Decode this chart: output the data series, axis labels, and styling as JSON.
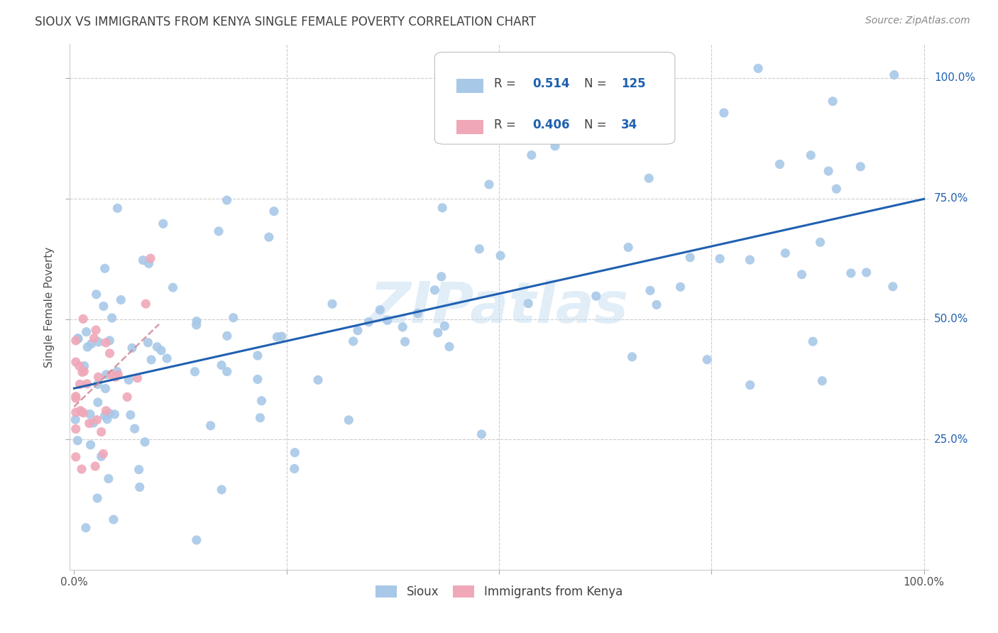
{
  "title": "SIOUX VS IMMIGRANTS FROM KENYA SINGLE FEMALE POVERTY CORRELATION CHART",
  "source": "Source: ZipAtlas.com",
  "ylabel": "Single Female Poverty",
  "watermark": "ZIPatlas",
  "legend_sioux": "Sioux",
  "legend_kenya": "Immigrants from Kenya",
  "sioux_R": 0.514,
  "sioux_N": 125,
  "kenya_R": 0.406,
  "kenya_N": 34,
  "sioux_color": "#a8c8e8",
  "kenya_color": "#f0a8b8",
  "sioux_line_color": "#2060b0",
  "kenya_line_color": "#d08898",
  "label_color": "#2060b0",
  "background_color": "#ffffff",
  "grid_color": "#cccccc",
  "title_color": "#404040",
  "source_color": "#888888",
  "ylabel_color": "#505050"
}
